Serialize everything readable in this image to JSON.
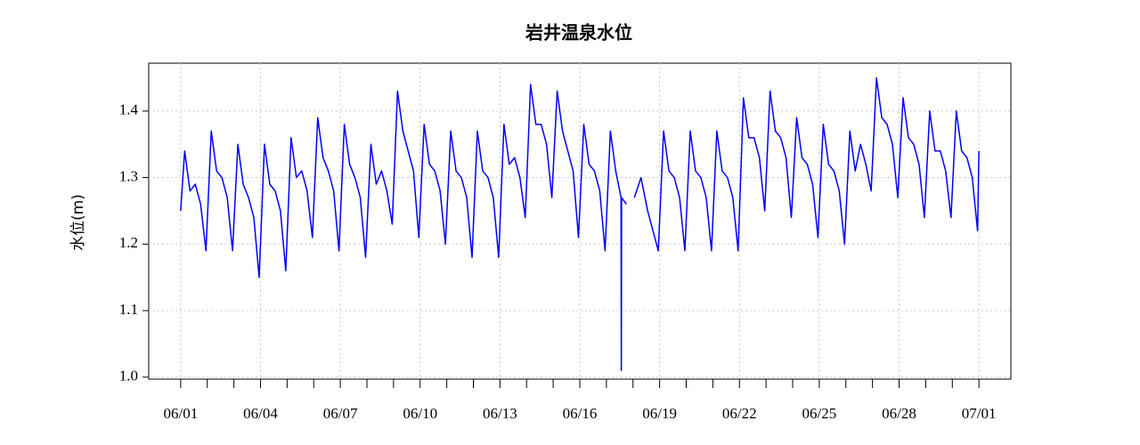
{
  "chart_data": {
    "type": "line",
    "title": "岩井温泉水位",
    "y_label": "水位(m)",
    "color": "#0000ff",
    "grid": true,
    "xlim": [
      -1.2,
      31.2
    ],
    "ylim": [
      0.997,
      1.472
    ],
    "yticks": [
      {
        "value": 1.0,
        "label": "1.0"
      },
      1.1,
      1.2,
      1.3,
      1.4
    ],
    "xticks": [
      {
        "value": 0,
        "label": "06/01"
      },
      {
        "value": 3,
        "label": "06/04"
      },
      {
        "value": 6,
        "label": "06/07"
      },
      {
        "value": 9,
        "label": "06/10"
      },
      {
        "value": 12,
        "label": "06/13"
      },
      {
        "value": 15,
        "label": "06/16"
      },
      {
        "value": 18,
        "label": "06/19"
      },
      {
        "value": 21,
        "label": "06/22"
      },
      {
        "value": 24,
        "label": "06/25"
      },
      {
        "value": 27,
        "label": "06/28"
      },
      {
        "value": 30,
        "label": "07/01"
      }
    ],
    "xminor": [
      0,
      1,
      2,
      3,
      4,
      5,
      6,
      7,
      8,
      9,
      10,
      11,
      12,
      13,
      14,
      15,
      16,
      17,
      18,
      19,
      20,
      21,
      22,
      23,
      24,
      25,
      26,
      27,
      28,
      29,
      30
    ],
    "x": [
      0,
      0.15,
      0.35,
      0.55,
      0.75,
      0.95,
      1.15,
      1.35,
      1.55,
      1.75,
      1.95,
      2.15,
      2.35,
      2.55,
      2.75,
      2.95,
      3.15,
      3.35,
      3.55,
      3.75,
      3.95,
      4.15,
      4.35,
      4.55,
      4.75,
      4.95,
      5.15,
      5.35,
      5.55,
      5.75,
      5.95,
      6.15,
      6.35,
      6.55,
      6.75,
      6.95,
      7.15,
      7.35,
      7.55,
      7.75,
      7.95,
      8.15,
      8.35,
      8.55,
      8.75,
      8.95,
      9.15,
      9.35,
      9.55,
      9.75,
      9.95,
      10.15,
      10.35,
      10.55,
      10.75,
      10.95,
      11.15,
      11.35,
      11.55,
      11.75,
      11.95,
      12.15,
      12.35,
      12.55,
      12.75,
      12.95,
      13.15,
      13.35,
      13.55,
      13.75,
      13.95,
      14.15,
      14.35,
      14.55,
      14.75,
      14.95,
      15.15,
      15.35,
      15.55,
      15.75,
      15.95,
      16.15,
      16.35,
      16.55,
      16.56,
      16.57,
      16.75,
      16.9,
      17.05,
      17.3,
      17.55,
      17.75,
      17.95,
      18.15,
      18.35,
      18.55,
      18.75,
      18.95,
      19.15,
      19.35,
      19.55,
      19.75,
      19.95,
      20.15,
      20.35,
      20.55,
      20.75,
      20.95,
      21.15,
      21.35,
      21.55,
      21.75,
      21.95,
      22.15,
      22.35,
      22.55,
      22.75,
      22.95,
      23.15,
      23.35,
      23.55,
      23.75,
      23.95,
      24.15,
      24.35,
      24.55,
      24.75,
      24.95,
      25.15,
      25.35,
      25.55,
      25.75,
      25.95,
      26.15,
      26.35,
      26.55,
      26.75,
      26.95,
      27.15,
      27.35,
      27.55,
      27.75,
      27.95,
      28.15,
      28.35,
      28.55,
      28.75,
      28.95,
      29.15,
      29.35,
      29.55,
      29.75,
      29.95,
      30
    ],
    "values": [
      1.25,
      1.34,
      1.28,
      1.29,
      1.26,
      1.19,
      1.37,
      1.31,
      1.3,
      1.27,
      1.19,
      1.35,
      1.29,
      1.27,
      1.24,
      1.15,
      1.35,
      1.29,
      1.28,
      1.25,
      1.16,
      1.36,
      1.3,
      1.31,
      1.28,
      1.21,
      1.39,
      1.33,
      1.31,
      1.28,
      1.19,
      1.38,
      1.32,
      1.3,
      1.27,
      1.18,
      1.35,
      1.29,
      1.31,
      1.28,
      1.23,
      1.43,
      1.37,
      1.34,
      1.31,
      1.21,
      1.38,
      1.32,
      1.31,
      1.28,
      1.2,
      1.37,
      1.31,
      1.3,
      1.27,
      1.18,
      1.37,
      1.31,
      1.3,
      1.27,
      1.18,
      1.38,
      1.32,
      1.33,
      1.3,
      1.24,
      1.44,
      1.38,
      1.38,
      1.35,
      1.27,
      1.43,
      1.37,
      1.34,
      1.31,
      1.21,
      1.38,
      1.32,
      1.31,
      1.28,
      1.19,
      1.37,
      1.31,
      1.27,
      1.01,
      1.27,
      1.26,
      null,
      1.27,
      1.3,
      1.25,
      1.22,
      1.19,
      1.37,
      1.31,
      1.3,
      1.27,
      1.19,
      1.37,
      1.31,
      1.3,
      1.27,
      1.19,
      1.37,
      1.31,
      1.3,
      1.27,
      1.19,
      1.42,
      1.36,
      1.36,
      1.33,
      1.25,
      1.43,
      1.37,
      1.36,
      1.33,
      1.24,
      1.39,
      1.33,
      1.32,
      1.29,
      1.21,
      1.38,
      1.32,
      1.31,
      1.28,
      1.2,
      1.37,
      1.31,
      1.35,
      1.32,
      1.28,
      1.45,
      1.39,
      1.38,
      1.35,
      1.27,
      1.42,
      1.36,
      1.35,
      1.32,
      1.24,
      1.4,
      1.34,
      1.34,
      1.31,
      1.24,
      1.4,
      1.34,
      1.33,
      1.3,
      1.22,
      1.34
    ]
  }
}
